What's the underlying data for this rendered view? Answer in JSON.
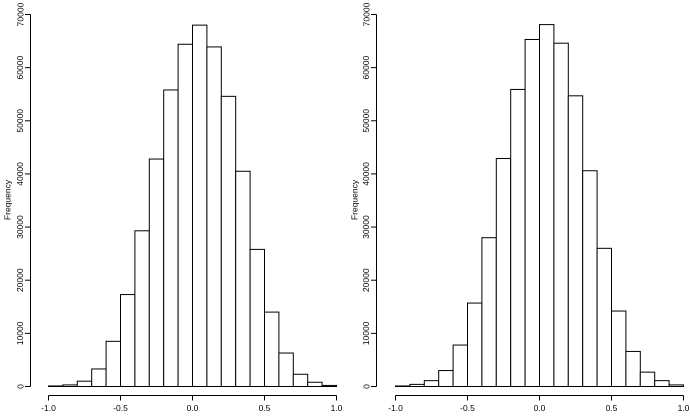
{
  "chart_data": [
    {
      "type": "bar",
      "histogram": true,
      "ylabel": "Frequency",
      "xlabel": "",
      "xlim": [
        -1.0,
        1.0
      ],
      "ylim": [
        0,
        70000
      ],
      "x_ticks": [
        -1.0,
        -0.5,
        0.0,
        0.5,
        1.0
      ],
      "x_tick_labels": [
        "-1.0",
        "-0.5",
        "0.0",
        "0.5",
        "1.0"
      ],
      "y_ticks": [
        0,
        10000,
        20000,
        30000,
        40000,
        50000,
        60000,
        70000
      ],
      "y_tick_labels": [
        "0",
        "10000",
        "20000",
        "30000",
        "40000",
        "50000",
        "60000",
        "70000"
      ],
      "bin_edges": [
        -1.0,
        -0.9,
        -0.8,
        -0.7,
        -0.6,
        -0.5,
        -0.4,
        -0.3,
        -0.2,
        -0.1,
        0.0,
        0.1,
        0.2,
        0.3,
        0.4,
        0.5,
        0.6,
        0.7,
        0.8,
        0.9,
        1.0
      ],
      "values": [
        100,
        300,
        1000,
        3300,
        8500,
        17300,
        29300,
        42800,
        55800,
        64400,
        68000,
        63900,
        54600,
        40500,
        25800,
        14000,
        6300,
        2300,
        800,
        200
      ],
      "grid": false
    },
    {
      "type": "bar",
      "histogram": true,
      "ylabel": "Frequency",
      "xlabel": "",
      "xlim": [
        -1.0,
        1.0
      ],
      "ylim": [
        0,
        70000
      ],
      "x_ticks": [
        -1.0,
        -0.5,
        0.0,
        0.5,
        1.0
      ],
      "x_tick_labels": [
        "-1.0",
        "-0.5",
        "0.0",
        "0.5",
        "1.0"
      ],
      "y_ticks": [
        0,
        10000,
        20000,
        30000,
        40000,
        50000,
        60000,
        70000
      ],
      "y_tick_labels": [
        "0",
        "10000",
        "20000",
        "30000",
        "40000",
        "50000",
        "60000",
        "70000"
      ],
      "bin_edges": [
        -1.0,
        -0.9,
        -0.8,
        -0.7,
        -0.6,
        -0.5,
        -0.4,
        -0.3,
        -0.2,
        -0.1,
        0.0,
        0.1,
        0.2,
        0.3,
        0.4,
        0.5,
        0.6,
        0.7,
        0.8,
        0.9,
        1.0
      ],
      "values": [
        100,
        400,
        1100,
        3000,
        7800,
        15700,
        28000,
        42900,
        55900,
        65300,
        68100,
        64600,
        54700,
        40600,
        26000,
        14200,
        6600,
        2700,
        1100,
        300
      ],
      "grid": false
    }
  ]
}
